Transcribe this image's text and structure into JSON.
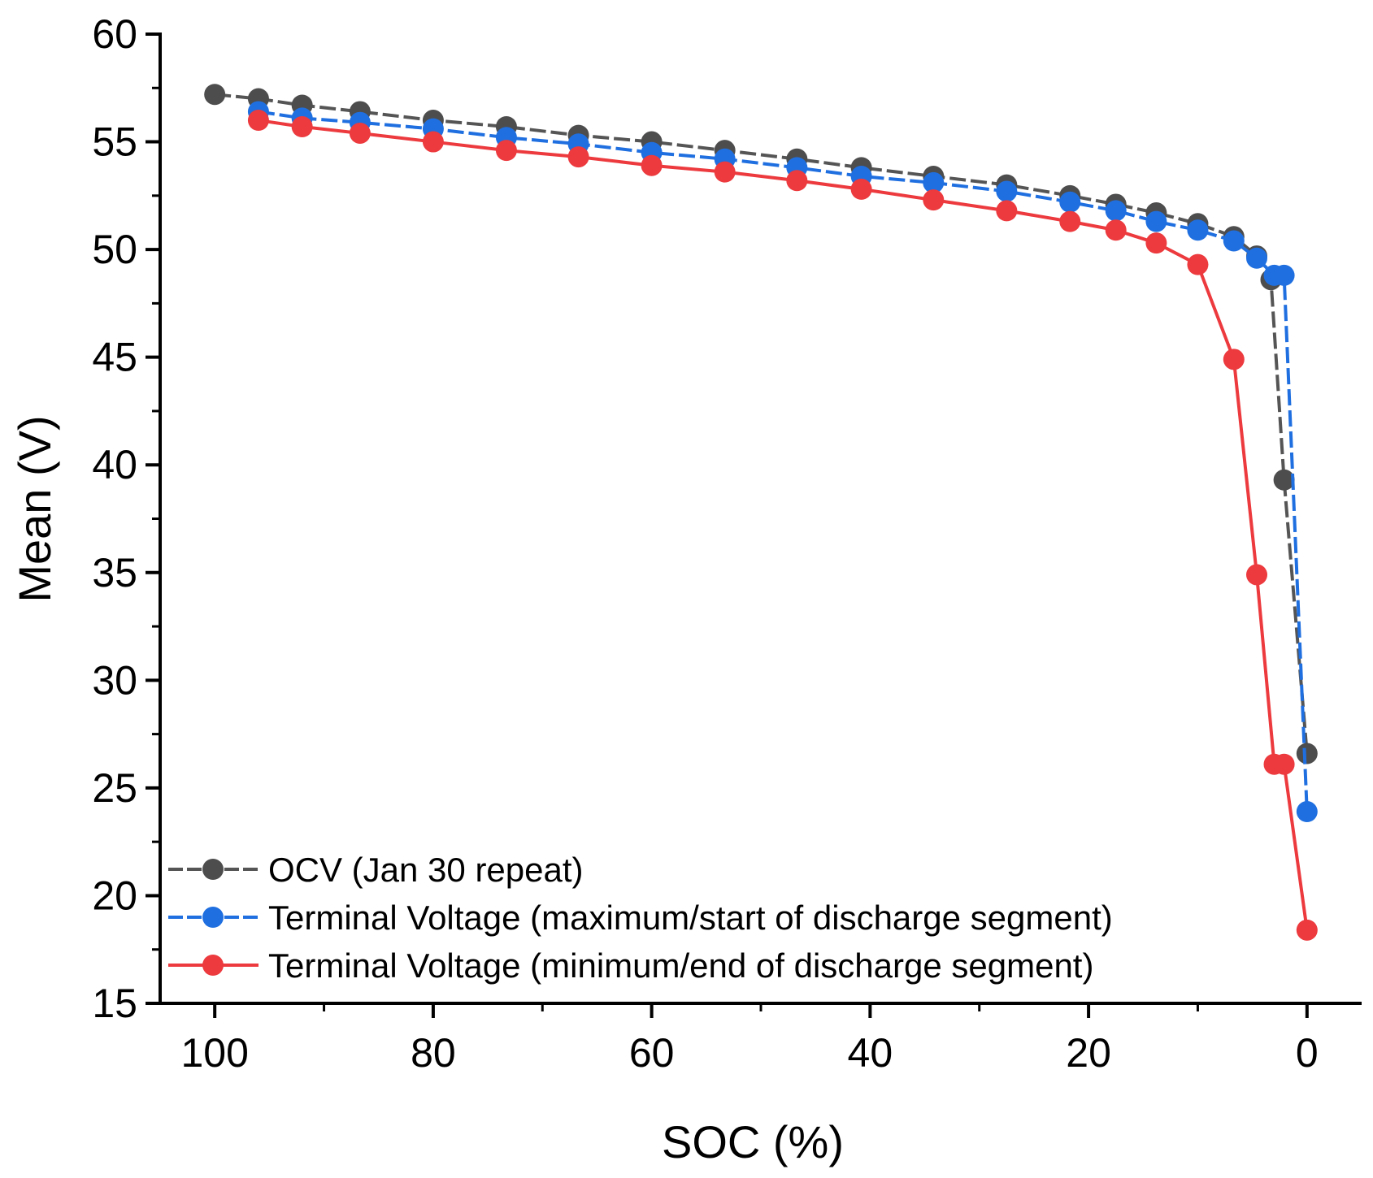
{
  "chart_data": {
    "type": "line",
    "title": "",
    "xlabel": "SOC (%)",
    "ylabel": "Mean (V)",
    "xlim": [
      105,
      -5
    ],
    "ylim": [
      15,
      60
    ],
    "x_reversed": true,
    "xticks": [
      100,
      80,
      60,
      40,
      20,
      0
    ],
    "yticks": [
      15,
      20,
      25,
      30,
      35,
      40,
      45,
      50,
      55,
      60
    ],
    "legend_position": "bottom-left",
    "series": [
      {
        "name": "OCV (Jan 30 repeat)",
        "color": "#4d4d4d",
        "line_color": "#555555",
        "dashed": true,
        "x": [
          100,
          96,
          92,
          86.7,
          80,
          73.3,
          66.7,
          60,
          53.3,
          46.7,
          40.8,
          34.2,
          27.5,
          21.7,
          17.5,
          13.8,
          10,
          6.7,
          4.6,
          3.3,
          2.1,
          0
        ],
        "y": [
          57.2,
          57.0,
          56.7,
          56.4,
          56.0,
          55.7,
          55.3,
          55.0,
          54.6,
          54.2,
          53.8,
          53.4,
          53.0,
          52.5,
          52.1,
          51.7,
          51.2,
          50.6,
          49.7,
          48.6,
          39.3,
          26.6
        ]
      },
      {
        "name": "Terminal Voltage (maximum/start of discharge segment)",
        "color": "#1f6fe0",
        "line_color": "#1f6fe0",
        "dashed": true,
        "x": [
          96,
          92,
          86.7,
          80,
          73.3,
          66.7,
          60,
          53.3,
          46.7,
          40.8,
          34.2,
          27.5,
          21.7,
          17.5,
          13.8,
          10,
          6.7,
          4.6,
          3.0,
          2.1,
          0
        ],
        "y": [
          56.4,
          56.1,
          55.9,
          55.6,
          55.2,
          54.9,
          54.5,
          54.2,
          53.8,
          53.4,
          53.1,
          52.7,
          52.2,
          51.8,
          51.3,
          50.9,
          50.4,
          49.6,
          48.8,
          48.8,
          23.9
        ]
      },
      {
        "name": "Terminal Voltage (minimum/end of discharge segment)",
        "color": "#ec3a3e",
        "line_color": "#ec3a3e",
        "dashed": false,
        "x": [
          96,
          92,
          86.7,
          80,
          73.3,
          66.7,
          60,
          53.3,
          46.7,
          40.8,
          34.2,
          27.5,
          21.7,
          17.5,
          13.8,
          10,
          6.7,
          4.6,
          3.0,
          2.1,
          0
        ],
        "y": [
          56.0,
          55.7,
          55.4,
          55.0,
          54.6,
          54.3,
          53.9,
          53.6,
          53.2,
          52.8,
          52.3,
          51.8,
          51.3,
          50.9,
          50.3,
          49.3,
          44.9,
          34.9,
          26.1,
          26.1,
          18.4
        ]
      }
    ]
  }
}
